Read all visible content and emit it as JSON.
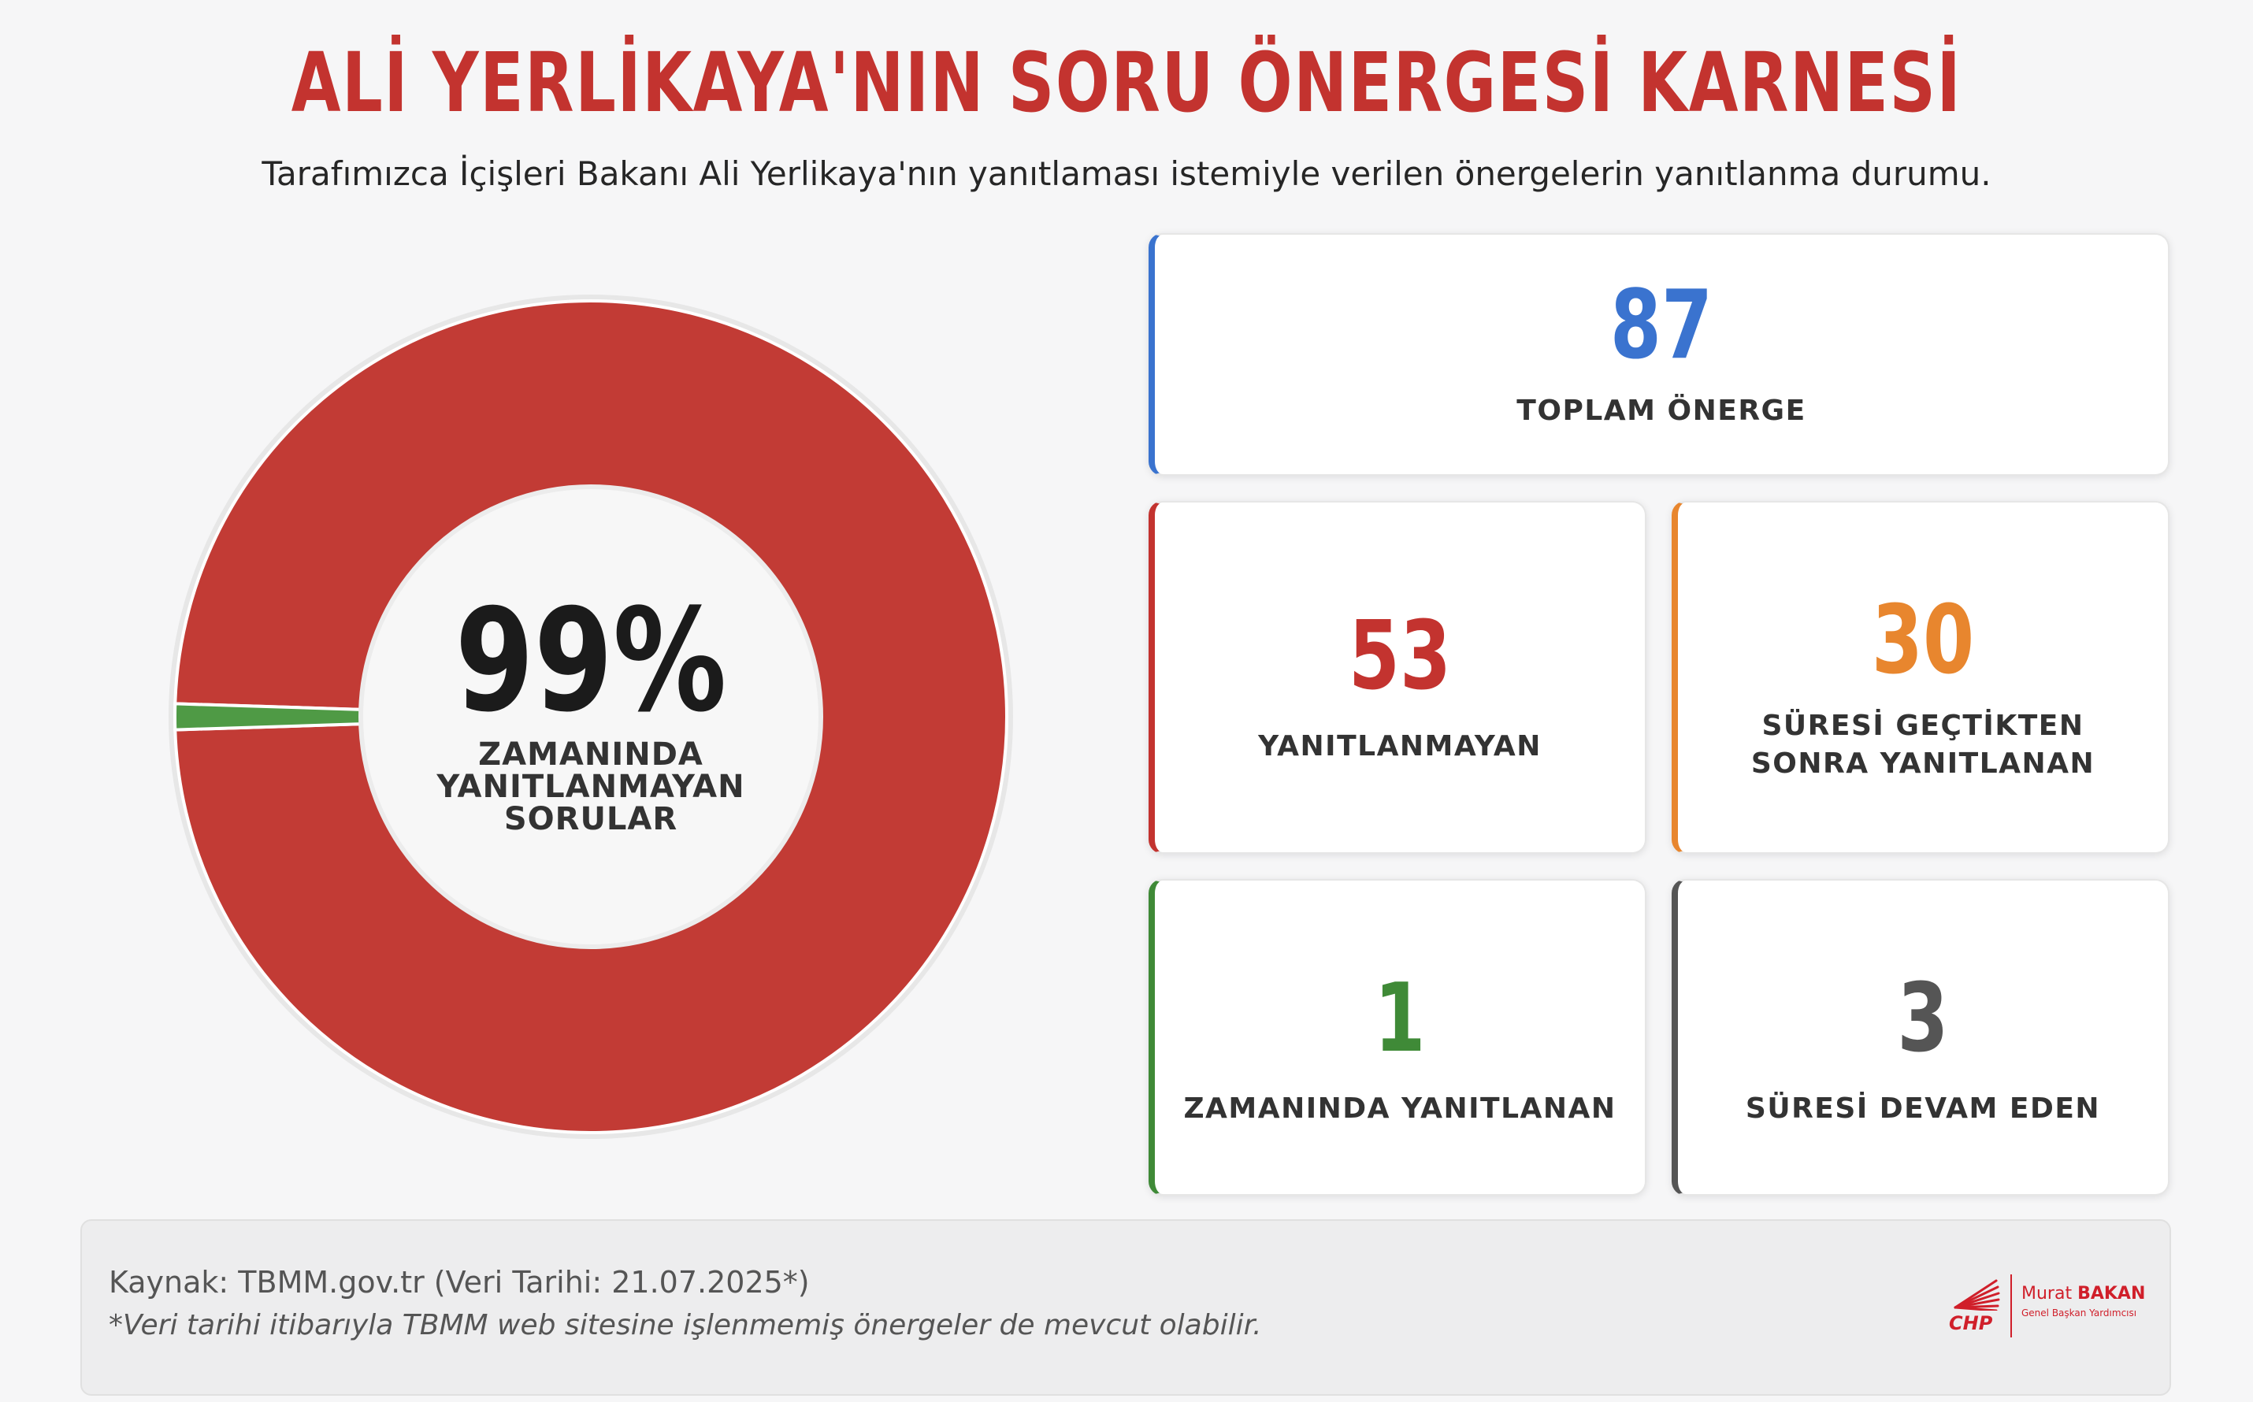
{
  "header": {
    "title": "ALİ YERLİKAYA'NIN SORU ÖNERGESİ KARNESİ",
    "subtitle": "Tarafımızca İçişleri Bakanı Ali Yerlikaya'nın yanıtlaması istemiyle verilen önergelerin yanıtlanma durumu."
  },
  "chart_data": {
    "type": "pie",
    "style": "donut",
    "slices": [
      {
        "label": "ZAMANINDA YANITLANMAYAN SORULAR",
        "value": 99,
        "color": "#c23b35"
      },
      {
        "label": "ZAMANINDA YANITLANAN",
        "value": 1,
        "color": "#4f9a45"
      }
    ],
    "center": {
      "value": "99%",
      "label": "ZAMANINDA YANITLANMAYAN SORULAR"
    }
  },
  "stats": {
    "total": {
      "value": "87",
      "label": "TOPLAM ÖNERGE",
      "color": "#3a73cf"
    },
    "unanswered": {
      "value": "53",
      "label": "YANITLANMAYAN",
      "color": "#c3332f"
    },
    "late": {
      "value": "30",
      "label": "SÜRESİ GEÇTİKTEN SONRA YANITLANAN",
      "color": "#e8862e"
    },
    "ontime": {
      "value": "1",
      "label": "ZAMANINDA YANITLANAN",
      "color": "#3f8a37"
    },
    "ongoing": {
      "value": "3",
      "label": "SÜRESİ DEVAM EDEN",
      "color": "#555555"
    }
  },
  "footer": {
    "source": "Kaynak: TBMM.gov.tr (Veri Tarihi: 21.07.2025*)",
    "note": "*Veri tarihi itibarıyla TBMM web sitesine işlenmemiş önergeler de mevcut olabilir.",
    "logo_party": "CHP",
    "logo_first": "Murat",
    "logo_last": "BAKAN",
    "logo_role": "Genel Başkan Yardımcısı"
  }
}
